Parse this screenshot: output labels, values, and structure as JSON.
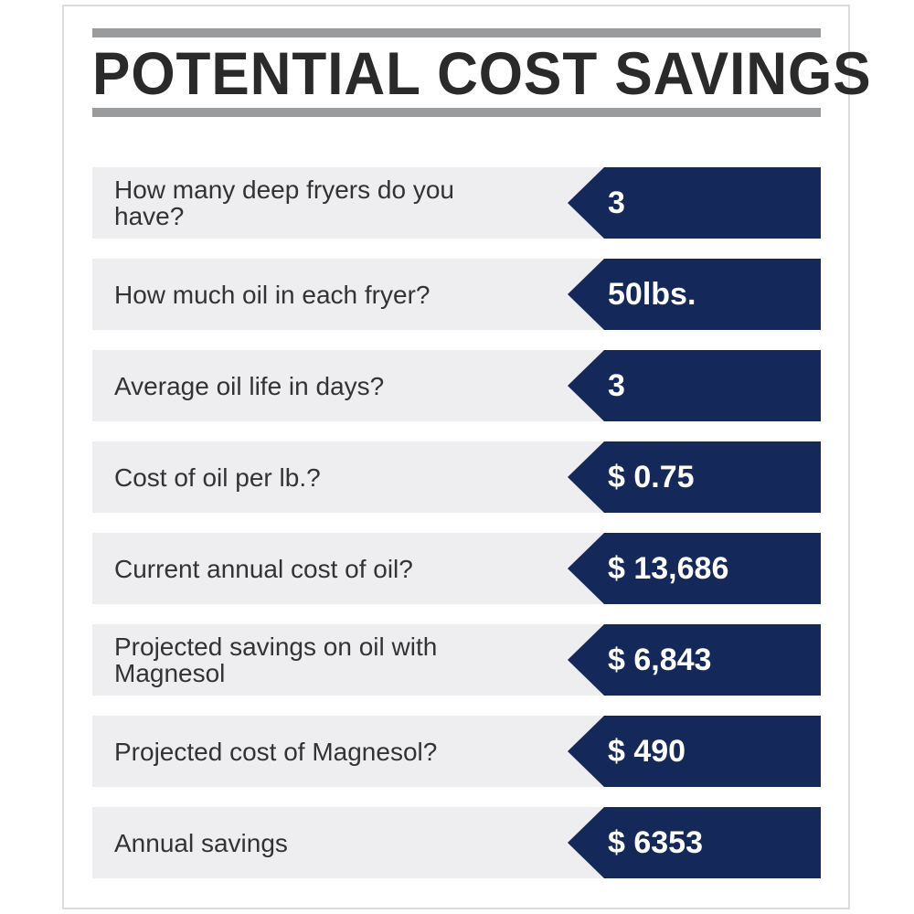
{
  "title": "POTENTIAL COST SAVINGS",
  "rows": [
    {
      "question": "How many deep fryers do you have?",
      "answer": "3"
    },
    {
      "question": "How much oil in each fryer?",
      "answer": "50lbs."
    },
    {
      "question": "Average oil life in days?",
      "answer": "3"
    },
    {
      "question": "Cost of oil per lb.?",
      "answer": "$ 0.75"
    },
    {
      "question": "Current annual cost of oil?",
      "answer": "$ 13,686"
    },
    {
      "question": "Projected savings on oil with Magnesol",
      "answer": "$ 6,843"
    },
    {
      "question": "Projected cost of Magnesol?",
      "answer": "$ 490"
    },
    {
      "question": "Annual savings",
      "answer": "$ 6353"
    }
  ],
  "colors": {
    "answer_bg": "#14295a",
    "question_bg": "#eeeef0",
    "rule": "#9a9b9d",
    "title": "#2a2a2a"
  }
}
